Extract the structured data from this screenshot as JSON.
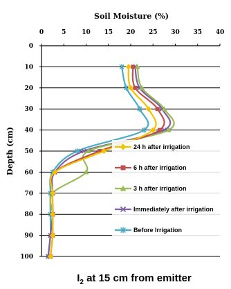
{
  "chart_data": {
    "type": "line",
    "title": "Soil Moisture (%)",
    "xlabel": "Soil Moisture (%)",
    "ylabel": "Depth (cm)",
    "xlim": [
      0,
      40
    ],
    "ylim": [
      0,
      100
    ],
    "x_ticks": [
      "0",
      "5",
      "10",
      "15",
      "20",
      "25",
      "30",
      "35",
      "40"
    ],
    "y_ticks": [
      "0",
      "10",
      "20",
      "30",
      "40",
      "50",
      "60",
      "70",
      "80",
      "90",
      "100"
    ],
    "x_axis_position": "top",
    "y_axis_inverted": true,
    "grid": "horizontal",
    "legend_position": "right-center",
    "caption": {
      "prefix": "I",
      "subscript": "2",
      "suffix": " at 15 cm from emitter"
    },
    "series": [
      {
        "name": "24 h after irrigation",
        "color": "#f2c200",
        "marker": "diamond",
        "points": [
          [
            19.5,
            10
          ],
          [
            20,
            20
          ],
          [
            24,
            30
          ],
          [
            25,
            40
          ],
          [
            14,
            50
          ],
          [
            3,
            60
          ],
          [
            2.5,
            70
          ],
          [
            2.5,
            80
          ],
          [
            2.5,
            90
          ],
          [
            2,
            100
          ]
        ]
      },
      {
        "name": "6 h after irrigation",
        "color": "#c0504d",
        "marker": "square",
        "points": [
          [
            20.5,
            10
          ],
          [
            21,
            20
          ],
          [
            26,
            30
          ],
          [
            26.5,
            40
          ],
          [
            13,
            50
          ],
          [
            3,
            60
          ],
          [
            2.5,
            70
          ],
          [
            2.5,
            80
          ],
          [
            2.5,
            90
          ],
          [
            2,
            100
          ]
        ]
      },
      {
        "name": "3 h after irrigation",
        "color": "#9bbb59",
        "marker": "triangle",
        "points": [
          [
            21.5,
            10
          ],
          [
            22.5,
            20
          ],
          [
            27.5,
            30
          ],
          [
            28.5,
            40
          ],
          [
            10.5,
            50
          ],
          [
            10,
            60
          ],
          [
            2.5,
            70
          ],
          [
            2.5,
            80
          ],
          [
            2.5,
            90
          ],
          [
            2,
            100
          ]
        ]
      },
      {
        "name": "Immediately after irrigation",
        "color": "#7f5fa6",
        "marker": "x",
        "points": [
          [
            21,
            10
          ],
          [
            22,
            20
          ],
          [
            27,
            30
          ],
          [
            27.5,
            40
          ],
          [
            9.5,
            50
          ],
          [
            3,
            60
          ],
          [
            2.5,
            70
          ],
          [
            2.5,
            80
          ],
          [
            2,
            90
          ],
          [
            1.5,
            100
          ]
        ]
      },
      {
        "name": "Before Irrigation",
        "color": "#4bacc6",
        "marker": "star",
        "points": [
          [
            18,
            10
          ],
          [
            19,
            20
          ],
          [
            22,
            30
          ],
          [
            23,
            40
          ],
          [
            8,
            50
          ],
          [
            2.5,
            60
          ],
          [
            2,
            70
          ],
          [
            2,
            80
          ],
          [
            2,
            90
          ],
          [
            1.5,
            100
          ]
        ]
      }
    ]
  }
}
